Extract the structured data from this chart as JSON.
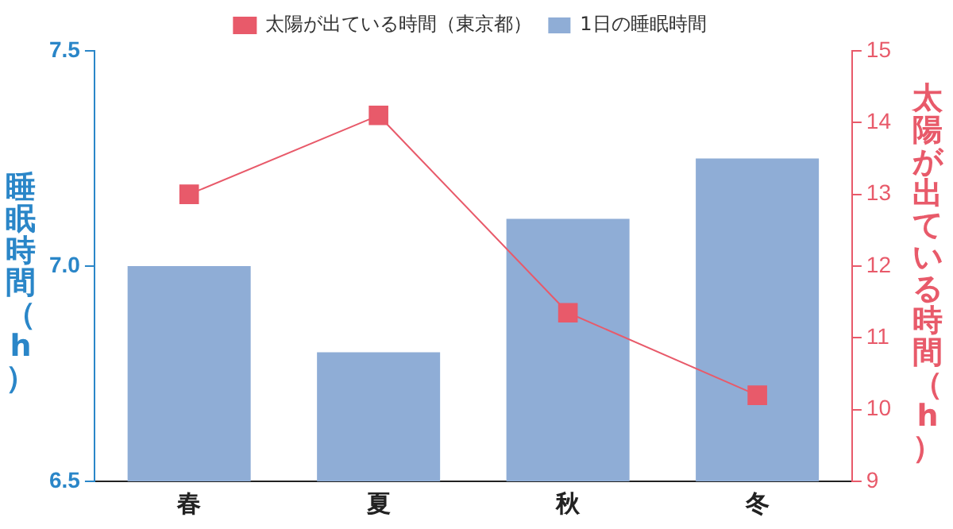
{
  "chart_data": {
    "type": "bar",
    "categories": [
      "春",
      "夏",
      "秋",
      "冬"
    ],
    "ylabel": "睡眠時間（h）",
    "y2label": "太陽が出ている時間（h）",
    "series": [
      {
        "name": "太陽が出ている時間（東京都）",
        "type": "line",
        "axis": "y2",
        "color": "#e85a6a",
        "marker": "square",
        "values": [
          13.0,
          14.1,
          11.35,
          10.2
        ]
      },
      {
        "name": "1日の睡眠時間",
        "color": "#8fadd6",
        "values": [
          7.0,
          6.8,
          7.11,
          7.25
        ]
      }
    ],
    "ylim": [
      6.5,
      7.5
    ],
    "yticks": [
      {
        "value": 6.5,
        "label": "6.5"
      },
      {
        "value": 7,
        "label": "7.0"
      },
      {
        "value": 7.5,
        "label": "7.5"
      }
    ],
    "y2lim": [
      9,
      15
    ],
    "y2ticks": [
      9,
      10,
      11,
      12,
      13,
      14,
      15
    ],
    "grid": false,
    "legend": "top"
  }
}
